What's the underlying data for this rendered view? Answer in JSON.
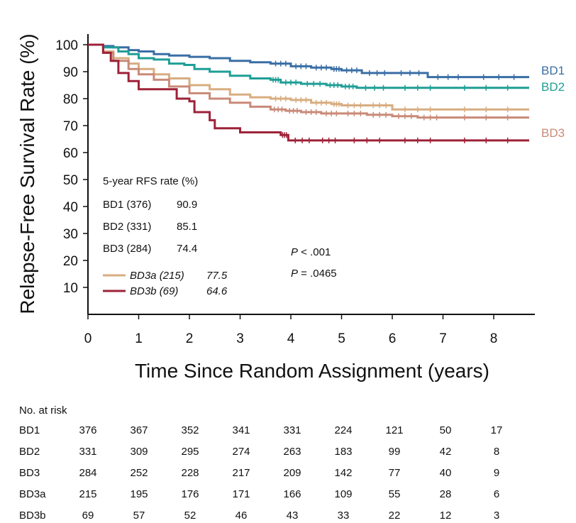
{
  "chart_data": {
    "type": "line",
    "title": "",
    "xlabel": "Time Since Random Assignment (years)",
    "ylabel": "Relapse-Free Survival Rate (%)",
    "xlim": [
      0,
      8.75
    ],
    "ylim": [
      0,
      105
    ],
    "x_ticks": [
      0,
      1,
      2,
      3,
      4,
      5,
      6,
      7,
      8
    ],
    "y_ticks": [
      10,
      20,
      30,
      40,
      50,
      60,
      70,
      80,
      90,
      100
    ],
    "grid": false,
    "series": [
      {
        "name": "BD1",
        "color": "#3a6ea5",
        "end_label": "BD1",
        "x": [
          0,
          0.3,
          0.5,
          0.8,
          1.0,
          1.3,
          1.6,
          2.0,
          2.4,
          2.8,
          3.2,
          3.6,
          4.0,
          4.4,
          4.8,
          5.0,
          5.4,
          6.0,
          6.7,
          7.5,
          8.7
        ],
        "y": [
          100,
          99.5,
          99,
          98,
          97.5,
          96.5,
          96,
          95.5,
          95,
          94,
          93.5,
          93,
          92,
          91.5,
          91,
          90.5,
          89.5,
          89.5,
          88,
          88,
          88
        ]
      },
      {
        "name": "BD2",
        "color": "#1f9e96",
        "end_label": "BD2",
        "x": [
          0,
          0.3,
          0.6,
          0.8,
          1.0,
          1.3,
          1.6,
          1.9,
          2.1,
          2.4,
          2.8,
          3.2,
          3.6,
          3.8,
          4.2,
          4.7,
          5.0,
          5.3,
          6.0,
          7.0,
          8.7
        ],
        "y": [
          100,
          99,
          97.5,
          96.5,
          95,
          94.5,
          93,
          92.5,
          91,
          90,
          88.5,
          87.5,
          87,
          86,
          85.5,
          85,
          84.5,
          84,
          84,
          84,
          84
        ]
      },
      {
        "name": "BD3",
        "color": "#c98a78",
        "end_label": "BD3",
        "x": [
          0,
          0.3,
          0.5,
          0.8,
          1.0,
          1.3,
          1.6,
          2.0,
          2.4,
          2.8,
          3.2,
          3.6,
          3.9,
          4.2,
          4.6,
          5.0,
          5.5,
          6.0,
          6.5,
          7.0,
          8.7
        ],
        "y": [
          100,
          97,
          94,
          91,
          89,
          87,
          84.5,
          82,
          80,
          78.5,
          77,
          76,
          75.5,
          75,
          74.5,
          74.5,
          74,
          73.5,
          73,
          73,
          73
        ]
      },
      {
        "name": "BD3a (215)",
        "color": "#d8ad80",
        "x": [
          0,
          0.3,
          0.5,
          0.8,
          1.0,
          1.3,
          1.6,
          2.0,
          2.4,
          2.8,
          3.2,
          3.6,
          4.0,
          4.4,
          4.8,
          5.0,
          5.5,
          6.0,
          7.0,
          8.7
        ],
        "y": [
          100,
          97.5,
          95,
          93,
          91,
          89,
          87.5,
          85,
          83.5,
          81.5,
          80.5,
          80,
          79.5,
          78.5,
          78,
          77.5,
          77.5,
          76,
          76,
          76
        ]
      },
      {
        "name": "BD3b (69)",
        "color": "#9e2238",
        "x": [
          0,
          0.3,
          0.45,
          0.6,
          0.8,
          1.0,
          1.5,
          1.75,
          2.0,
          2.1,
          2.4,
          2.5,
          3.0,
          3.4,
          3.8,
          3.95,
          4.5,
          5.0,
          6.0,
          7.0,
          8.7
        ],
        "y": [
          100,
          97,
          94,
          89.5,
          86.5,
          83.5,
          83.5,
          80,
          79,
          75,
          72,
          69,
          67.5,
          67.5,
          66.5,
          64.5,
          64.5,
          64.5,
          64.5,
          64.5,
          64.5
        ]
      }
    ],
    "legend": {
      "title": "5-year RFS rate (%)",
      "entries": [
        {
          "label": "BD1 (376)",
          "value": "90.9"
        },
        {
          "label": "BD2 (331)",
          "value": "85.1"
        },
        {
          "label": "BD3 (284)",
          "value": "74.4"
        }
      ],
      "sub_entries": [
        {
          "label": "BD3a (215)",
          "value": "77.5",
          "color": "#d8ad80"
        },
        {
          "label": "BD3b (69)",
          "value": "64.6",
          "color": "#9e2238"
        }
      ]
    },
    "annotations": [
      {
        "prefix": "P",
        "text": " < .001"
      },
      {
        "prefix": "P",
        "text": " = .0465"
      }
    ]
  },
  "risk_table": {
    "title": "No. at risk",
    "rows": [
      {
        "label": "BD1",
        "values": [
          "376",
          "367",
          "352",
          "341",
          "331",
          "224",
          "121",
          "50",
          "17"
        ]
      },
      {
        "label": "BD2",
        "values": [
          "331",
          "309",
          "295",
          "274",
          "263",
          "183",
          "99",
          "42",
          "8"
        ]
      },
      {
        "label": "BD3",
        "values": [
          "284",
          "252",
          "228",
          "217",
          "209",
          "142",
          "77",
          "40",
          "9"
        ]
      },
      {
        "label": "BD3a",
        "values": [
          "215",
          "195",
          "176",
          "171",
          "166",
          "109",
          "55",
          "28",
          "6"
        ]
      },
      {
        "label": "BD3b",
        "values": [
          "69",
          "57",
          "52",
          "46",
          "43",
          "33",
          "22",
          "12",
          "3"
        ]
      }
    ]
  }
}
